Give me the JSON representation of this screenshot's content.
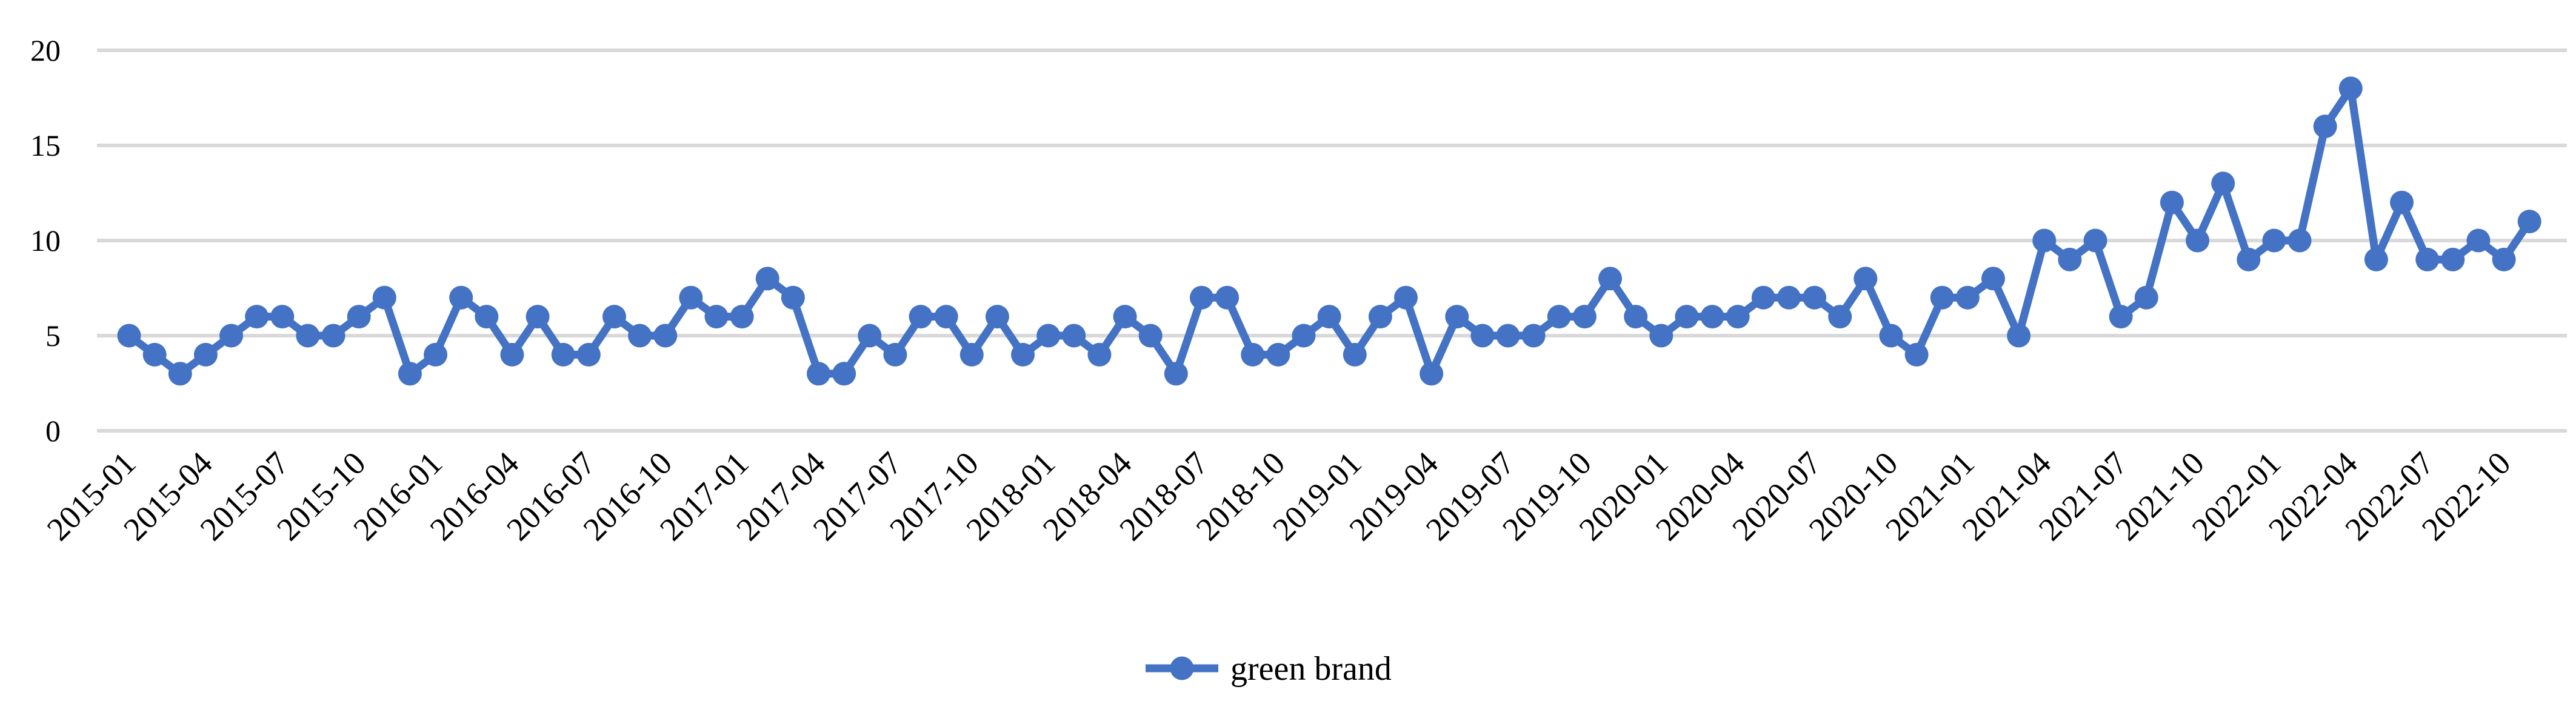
{
  "legend": {
    "label": "green brand"
  },
  "axis": {
    "y_tick_labels": [
      "0",
      "5",
      "10",
      "15",
      "20"
    ],
    "x_tick_labels": [
      "2015-01",
      "2015-04",
      "2015-07",
      "2015-10",
      "2016-01",
      "2016-04",
      "2016-07",
      "2016-10",
      "2017-01",
      "2017-04",
      "2017-07",
      "2017-10",
      "2018-01",
      "2018-04",
      "2018-07",
      "2018-10",
      "2019-01",
      "2019-04",
      "2019-07",
      "2019-10",
      "2020-01",
      "2020-04",
      "2020-07",
      "2020-10",
      "2021-01",
      "2021-04",
      "2021-07",
      "2021-10",
      "2022-01",
      "2022-04",
      "2022-07",
      "2022-10"
    ]
  },
  "chart_data": {
    "type": "line",
    "title": "",
    "xlabel": "",
    "ylabel": "",
    "ylim": [
      0,
      20
    ],
    "yticks": [
      0,
      5,
      10,
      15,
      20
    ],
    "grid": "horizontal",
    "legend_position": "bottom-center",
    "x_tick_every": 3,
    "categories": [
      "2015-01",
      "2015-02",
      "2015-03",
      "2015-04",
      "2015-05",
      "2015-06",
      "2015-07",
      "2015-08",
      "2015-09",
      "2015-10",
      "2015-11",
      "2015-12",
      "2016-01",
      "2016-02",
      "2016-03",
      "2016-04",
      "2016-05",
      "2016-06",
      "2016-07",
      "2016-08",
      "2016-09",
      "2016-10",
      "2016-11",
      "2016-12",
      "2017-01",
      "2017-02",
      "2017-03",
      "2017-04",
      "2017-05",
      "2017-06",
      "2017-07",
      "2017-08",
      "2017-09",
      "2017-10",
      "2017-11",
      "2017-12",
      "2018-01",
      "2018-02",
      "2018-03",
      "2018-04",
      "2018-05",
      "2018-06",
      "2018-07",
      "2018-08",
      "2018-09",
      "2018-10",
      "2018-11",
      "2018-12",
      "2019-01",
      "2019-02",
      "2019-03",
      "2019-04",
      "2019-05",
      "2019-06",
      "2019-07",
      "2019-08",
      "2019-09",
      "2019-10",
      "2019-11",
      "2019-12",
      "2020-01",
      "2020-02",
      "2020-03",
      "2020-04",
      "2020-05",
      "2020-06",
      "2020-07",
      "2020-08",
      "2020-09",
      "2020-10",
      "2020-11",
      "2020-12",
      "2021-01",
      "2021-02",
      "2021-03",
      "2021-04",
      "2021-05",
      "2021-06",
      "2021-07",
      "2021-08",
      "2021-09",
      "2021-10",
      "2021-11",
      "2021-12",
      "2022-01",
      "2022-02",
      "2022-03",
      "2022-04",
      "2022-05",
      "2022-06",
      "2022-07",
      "2022-08",
      "2022-09",
      "2022-10",
      "2022-11"
    ],
    "series": [
      {
        "name": "green brand",
        "values": [
          5,
          4,
          3,
          4,
          5,
          6,
          6,
          5,
          5,
          6,
          7,
          3,
          4,
          7,
          6,
          4,
          6,
          4,
          4,
          6,
          5,
          5,
          7,
          6,
          6,
          8,
          7,
          3,
          3,
          5,
          4,
          6,
          6,
          4,
          6,
          4,
          5,
          5,
          4,
          6,
          5,
          3,
          7,
          7,
          4,
          4,
          5,
          6,
          4,
          6,
          7,
          3,
          6,
          5,
          5,
          5,
          6,
          6,
          8,
          6,
          5,
          6,
          6,
          6,
          7,
          7,
          7,
          6,
          8,
          5,
          4,
          7,
          7,
          8,
          5,
          10,
          9,
          10,
          6,
          7,
          12,
          10,
          13,
          9,
          10,
          10,
          16,
          18,
          9,
          12,
          9,
          9,
          10,
          9,
          11
        ]
      }
    ],
    "colors": {
      "series": "#4472C4",
      "gridline": "#D9D9D9",
      "text": "#000000",
      "background": "#FFFFFF"
    }
  }
}
